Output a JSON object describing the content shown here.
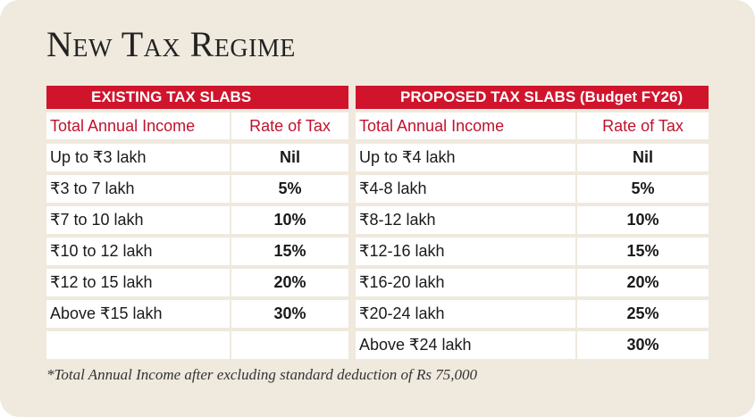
{
  "title": "New Tax Regime",
  "tables": [
    {
      "header": "EXISTING TAX SLABS",
      "columns": [
        "Total Annual Income",
        "Rate of Tax"
      ],
      "rows": [
        [
          "Up to ₹3 lakh",
          "Nil"
        ],
        [
          "₹3 to 7 lakh",
          "5%"
        ],
        [
          "₹7 to 10 lakh",
          "10%"
        ],
        [
          "₹10 to 12 lakh",
          "15%"
        ],
        [
          "₹12 to 15 lakh",
          "20%"
        ],
        [
          "Above ₹15 lakh",
          "30%"
        ]
      ]
    },
    {
      "header": "PROPOSED TAX SLABS (Budget FY26)",
      "columns": [
        "Total Annual Income",
        "Rate of Tax"
      ],
      "rows": [
        [
          "Up to ₹4 lakh",
          "Nil"
        ],
        [
          "₹4-8 lakh",
          "5%"
        ],
        [
          "₹8-12 lakh",
          "10%"
        ],
        [
          "₹12-16 lakh",
          "15%"
        ],
        [
          "₹16-20 lakh",
          "20%"
        ],
        [
          "₹20-24 lakh",
          "25%"
        ],
        [
          "Above ₹24 lakh",
          "30%"
        ]
      ]
    }
  ],
  "footnote": "*Total Annual Income after excluding standard deduction of Rs 75,000"
}
